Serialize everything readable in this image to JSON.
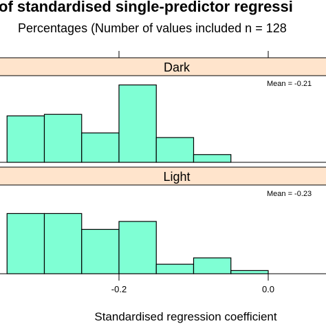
{
  "chart_data": {
    "type": "bar",
    "title": "of standardised single-predictor regressi",
    "subtitle": "Percentages (Number of values included n = 128",
    "xlabel": "Standardised regression coefficient",
    "ylabel": "",
    "x_ticks": [
      -0.2,
      0.0
    ],
    "x_tick_labels": [
      "-0.2",
      "0.0"
    ],
    "bin_edges": [
      -0.35,
      -0.3,
      -0.25,
      -0.2,
      -0.15,
      -0.1,
      -0.05,
      0.0,
      0.05
    ],
    "panel_ylim": [
      0,
      28
    ],
    "colors": {
      "bar_fill": "#7FFFD4",
      "strip_fill": "#FFE4CC",
      "axis": "#000000"
    },
    "panels": [
      {
        "strip": "Dark",
        "mean_label": "Mean = -0.21",
        "values": [
          15,
          15.5,
          9.5,
          25,
          8,
          2.5,
          0,
          0
        ]
      },
      {
        "strip": "Light",
        "mean_label": "Mean = -0.23",
        "values": [
          19,
          19,
          14,
          16.5,
          3,
          5,
          1,
          0
        ]
      }
    ]
  }
}
